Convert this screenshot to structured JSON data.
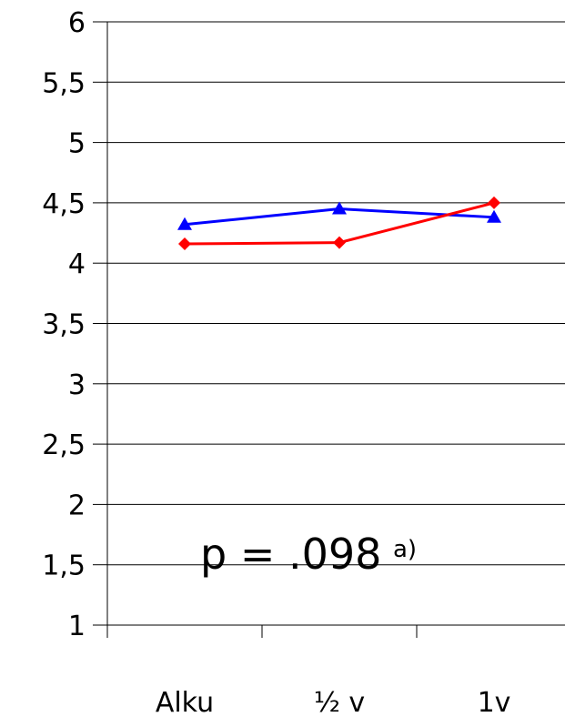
{
  "chart_data": {
    "type": "line",
    "categories": [
      "Alku",
      "½ v",
      "1v"
    ],
    "series": [
      {
        "color": "#0000ff",
        "marker": "triangle",
        "values": [
          4.32,
          4.45,
          4.38
        ]
      },
      {
        "color": "#ff0000",
        "marker": "diamond",
        "values": [
          4.16,
          4.17,
          4.5
        ]
      }
    ],
    "ylim": [
      1,
      6
    ],
    "yticks": [
      1,
      1.5,
      2,
      2.5,
      3,
      3.5,
      4,
      4.5,
      5,
      5.5,
      6
    ],
    "ytick_labels": [
      "1",
      "1,5",
      "2",
      "2,5",
      "3",
      "3,5",
      "4",
      "4,5",
      "5",
      "5,5",
      "6"
    ],
    "grid": true,
    "annotation": {
      "text": "p = .098",
      "superscript": "a)"
    }
  }
}
